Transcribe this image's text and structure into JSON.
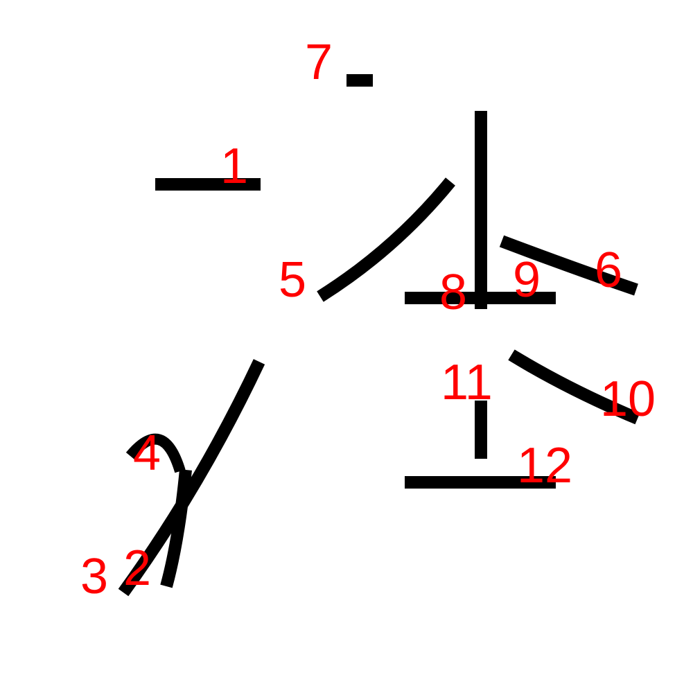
{
  "colors": {
    "background": "#ffffff",
    "stroke": "#000000",
    "label": "#ff0000"
  },
  "strokes": [
    {
      "number": "1"
    },
    {
      "number": "2"
    },
    {
      "number": "3"
    },
    {
      "number": "4"
    },
    {
      "number": "5"
    },
    {
      "number": "6"
    },
    {
      "number": "7"
    },
    {
      "number": "8"
    },
    {
      "number": "9"
    },
    {
      "number": "10"
    },
    {
      "number": "11"
    },
    {
      "number": "12"
    }
  ]
}
